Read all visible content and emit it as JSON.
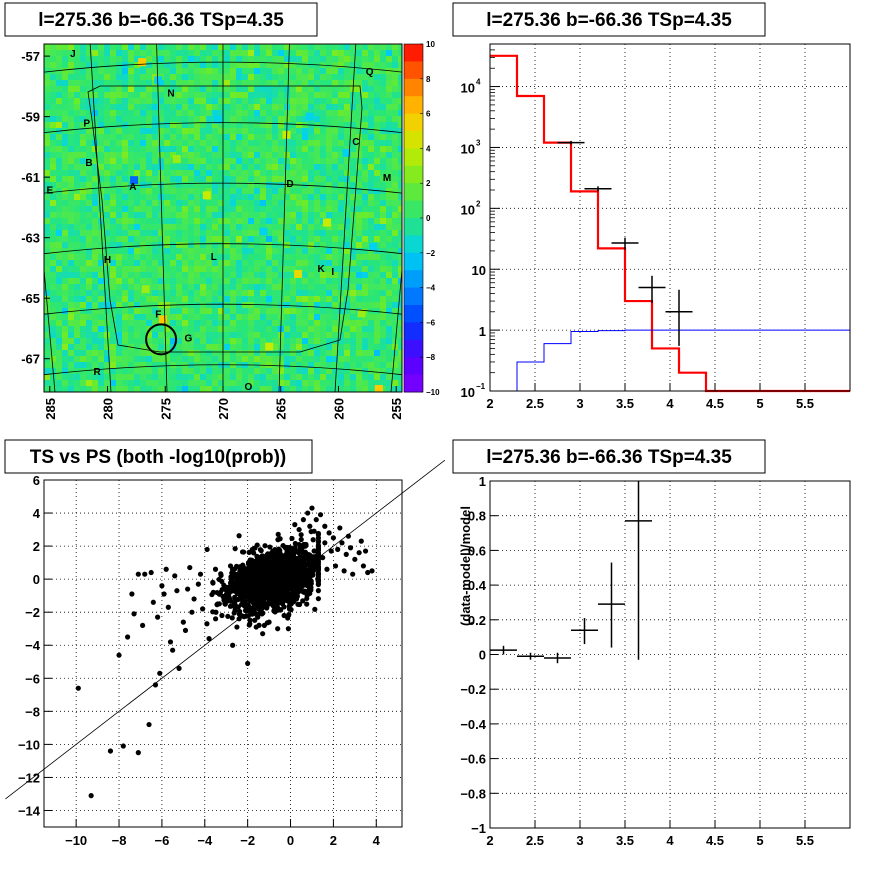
{
  "chart_data": [
    {
      "type": "heatmap",
      "title": "l=275.36 b=-66.36 TSp=4.35",
      "xlim": [
        285.5,
        254.5
      ],
      "ylim": [
        -68.1,
        -56.6
      ],
      "xticks": [
        285,
        280,
        275,
        270,
        265,
        260,
        255
      ],
      "yticks": [
        -57,
        -59,
        -61,
        -63,
        -65,
        -67
      ],
      "xtick_labels": [
        "285",
        "280",
        "275",
        "270",
        "265",
        "260",
        "255"
      ],
      "ytick_labels": [
        "-57",
        "-59",
        "-61",
        "-63",
        "-65",
        "-67"
      ],
      "colorbar": {
        "range": [
          -10,
          10
        ],
        "ticks": [
          10,
          8,
          6,
          4,
          2,
          0,
          -2,
          -4,
          -6,
          -8,
          -10
        ],
        "tick_labels": [
          "10",
          "8",
          "6",
          "4",
          "2",
          "0",
          "−2",
          "−4",
          "−6",
          "−8",
          "−10"
        ]
      },
      "background_value": 0.3,
      "sources": [
        {
          "label": "J",
          "l": 283.0,
          "b": -56.9
        },
        {
          "label": "N",
          "l": 274.5,
          "b": -58.2
        },
        {
          "label": "Q",
          "l": 257.3,
          "b": -57.5
        },
        {
          "label": "P",
          "l": 281.8,
          "b": -59.2
        },
        {
          "label": "C",
          "l": 258.5,
          "b": -59.8
        },
        {
          "label": "B",
          "l": 281.6,
          "b": -60.5
        },
        {
          "label": "M",
          "l": 255.8,
          "b": -61.0
        },
        {
          "label": "E",
          "l": 285.0,
          "b": -61.4
        },
        {
          "label": "A",
          "l": 277.8,
          "b": -61.3
        },
        {
          "label": "D",
          "l": 264.2,
          "b": -61.2
        },
        {
          "label": "H",
          "l": 280.0,
          "b": -63.7
        },
        {
          "label": "L",
          "l": 270.8,
          "b": -63.6
        },
        {
          "label": "K",
          "l": 261.5,
          "b": -64.0
        },
        {
          "label": "I",
          "l": 260.5,
          "b": -64.1
        },
        {
          "label": "F",
          "l": 275.6,
          "b": -65.5
        },
        {
          "label": "G",
          "l": 273.0,
          "b": -66.3
        },
        {
          "label": "R",
          "l": 280.9,
          "b": -67.4
        },
        {
          "label": "O",
          "l": 267.8,
          "b": -67.9
        }
      ],
      "hot_spots": [
        {
          "l": 277.0,
          "b": -57.2,
          "v": 6
        },
        {
          "l": 264.5,
          "b": -59.6,
          "v": 4
        },
        {
          "l": 275.2,
          "b": -65.7,
          "v": 6
        },
        {
          "l": 271.4,
          "b": -61.6,
          "v": 4
        },
        {
          "l": 261.0,
          "b": -62.5,
          "v": 4
        },
        {
          "l": 263.5,
          "b": -64.2,
          "v": 5
        },
        {
          "l": 276.7,
          "b": -64.7,
          "v": 3
        },
        {
          "l": 258.0,
          "b": -65.5,
          "v": 3
        },
        {
          "l": 256.5,
          "b": -68.0,
          "v": 6
        },
        {
          "l": 274.0,
          "b": -60.4,
          "v": 3
        },
        {
          "l": 266.0,
          "b": -66.6,
          "v": 4
        }
      ],
      "cold_spots": [
        {
          "l": 277.7,
          "b": -61.1,
          "v": -5
        },
        {
          "l": 275.6,
          "b": -57.8,
          "v": -2
        },
        {
          "l": 262.5,
          "b": -59.0,
          "v": -2
        },
        {
          "l": 259.3,
          "b": -60.2,
          "v": -2
        },
        {
          "l": 257.0,
          "b": -63.3,
          "v": -2
        },
        {
          "l": 270.5,
          "b": -59.1,
          "v": -2
        },
        {
          "l": 266.5,
          "b": -62.8,
          "v": -2
        }
      ],
      "marked_position": {
        "l": 275.36,
        "b": -66.36,
        "radius_deg": 0.7
      }
    },
    {
      "type": "line",
      "title": "l=275.36 b=-66.36 TSp=4.35",
      "xlim": [
        2,
        6
      ],
      "ylim": [
        0.1,
        50000
      ],
      "log_y": true,
      "grid": true,
      "xticks": [
        2,
        2.5,
        3,
        3.5,
        4,
        4.5,
        5,
        5.5
      ],
      "xtick_labels": [
        "2",
        "2.5",
        "3",
        "3.5",
        "4",
        "4.5",
        "5",
        "5.5"
      ],
      "yticks": [
        0.1,
        1,
        10,
        100,
        1000,
        10000
      ],
      "ytick_labels": [
        {
          "base": "10",
          "exp": "−1"
        },
        {
          "base": "1",
          "exp": ""
        },
        {
          "base": "10",
          "exp": ""
        },
        {
          "base": "10",
          "exp": "2"
        },
        {
          "base": "10",
          "exp": "3"
        },
        {
          "base": "10",
          "exp": "4"
        }
      ],
      "bin_edges": [
        2.0,
        2.3,
        2.6,
        2.9,
        3.2,
        3.5,
        3.8,
        4.1,
        4.4,
        6.0
      ],
      "series": [
        {
          "color": "#ff0000",
          "values": [
            32000,
            7000,
            1200,
            190,
            22,
            3,
            0.5,
            0.2,
            0.1
          ]
        },
        {
          "color": "#0000ff",
          "values": [
            0.08,
            0.3,
            0.6,
            0.95,
            0.98,
            1.0,
            1.0,
            1.0,
            1.0
          ]
        }
      ],
      "data_points": [
        {
          "x": 2.9,
          "y": 1200,
          "xerr": 0.15,
          "ylo": 1120,
          "yhi": 1280
        },
        {
          "x": 3.2,
          "y": 210,
          "xerr": 0.15,
          "ylo": 190,
          "yhi": 230
        },
        {
          "x": 3.5,
          "y": 27,
          "xerr": 0.15,
          "ylo": 21,
          "yhi": 33
        },
        {
          "x": 3.8,
          "y": 5,
          "xerr": 0.15,
          "ylo": 2.8,
          "yhi": 7.8
        },
        {
          "x": 4.1,
          "y": 2,
          "xerr": 0.15,
          "ylo": 0.55,
          "yhi": 4.6
        }
      ]
    },
    {
      "type": "scatter",
      "title": "TS vs PS (both -log10(prob))",
      "xlim": [
        -11.5,
        5.2
      ],
      "ylim": [
        -15,
        6
      ],
      "grid": true,
      "xticks": [
        -10,
        -8,
        -6,
        -4,
        -2,
        0,
        2,
        4
      ],
      "xtick_labels": [
        "−10",
        "−8",
        "−6",
        "−4",
        "−2",
        "0",
        "2",
        "4"
      ],
      "yticks": [
        6,
        4,
        2,
        0,
        -2,
        -4,
        -6,
        -8,
        -10,
        -12,
        -14
      ],
      "ytick_labels": [
        "6",
        "4",
        "2",
        "0",
        "−2",
        "−4",
        "−6",
        "−8",
        "−10",
        "−12",
        "−14"
      ],
      "diagonal": {
        "from": [
          -13.3,
          -13.3
        ],
        "to": [
          7.2,
          7.2
        ]
      },
      "cluster": {
        "cx": -0.8,
        "cy": 0.0,
        "sx": 1.0,
        "sy": 0.85,
        "n": 1600
      },
      "points": [
        [
          -9.9,
          -6.6
        ],
        [
          -9.3,
          -13.1
        ],
        [
          -8.4,
          -10.4
        ],
        [
          -7.8,
          -10.1
        ],
        [
          -7.1,
          -10.5
        ],
        [
          -6.6,
          -8.8
        ],
        [
          -8.0,
          -4.6
        ],
        [
          -7.6,
          -3.5
        ],
        [
          -7.3,
          -2.1
        ],
        [
          -7.1,
          0.3
        ],
        [
          -6.8,
          0.3
        ],
        [
          -6.4,
          -1.4
        ],
        [
          -6.2,
          -2.3
        ],
        [
          -6.0,
          -0.4
        ],
        [
          -5.9,
          -0.9
        ],
        [
          -5.7,
          -1.7
        ],
        [
          -5.5,
          -4.3
        ],
        [
          -5.3,
          -0.7
        ],
        [
          -5.2,
          -5.4
        ],
        [
          -5.0,
          -2.6
        ],
        [
          -4.8,
          -0.6
        ],
        [
          -4.6,
          -2.0
        ],
        [
          -4.5,
          -1.2
        ],
        [
          -4.3,
          -0.3
        ],
        [
          -4.1,
          -1.8
        ],
        [
          -3.9,
          -2.7
        ],
        [
          -3.8,
          -3.6
        ],
        [
          -3.6,
          -0.8
        ],
        [
          -3.4,
          -1.5
        ],
        [
          -3.2,
          -2.2
        ],
        [
          -3.0,
          -0.5
        ],
        [
          -2.9,
          -1.0
        ],
        [
          -2.7,
          -4.0
        ],
        [
          -2.6,
          -1.4
        ],
        [
          -2.4,
          -2.4
        ],
        [
          -2.2,
          -0.7
        ],
        [
          -2.1,
          -1.9
        ],
        [
          -2.0,
          -5.1
        ],
        [
          -6.3,
          -6.4
        ],
        [
          -6.1,
          -5.7
        ],
        [
          -5.6,
          -3.8
        ],
        [
          -4.9,
          -3.1
        ],
        [
          -6.9,
          -2.8
        ],
        [
          -7.4,
          -0.9
        ],
        [
          -6.5,
          0.4
        ],
        [
          -5.8,
          0.6
        ],
        [
          -5.4,
          0.2
        ],
        [
          -4.7,
          0.7
        ],
        [
          -4.2,
          0.3
        ],
        [
          -3.5,
          0.6
        ],
        [
          -2.8,
          0.8
        ],
        [
          -2.3,
          0.5
        ],
        [
          -1.6,
          -2.9
        ],
        [
          -1.3,
          -3.3
        ],
        [
          -1.0,
          -2.6
        ],
        [
          -0.6,
          -3.0
        ],
        [
          -0.3,
          -2.2
        ],
        [
          -0.1,
          -3.0
        ],
        [
          -1.9,
          -2.7
        ],
        [
          -2.5,
          -2.9
        ],
        [
          0.2,
          3.3
        ],
        [
          0.4,
          3.0
        ],
        [
          0.6,
          3.6
        ],
        [
          0.8,
          4.0
        ],
        [
          1.0,
          4.3
        ],
        [
          1.2,
          3.6
        ],
        [
          1.4,
          3.9
        ],
        [
          1.6,
          3.2
        ],
        [
          1.8,
          2.8
        ],
        [
          2.0,
          2.5
        ],
        [
          2.2,
          1.8
        ],
        [
          2.4,
          2.2
        ],
        [
          2.6,
          1.5
        ],
        [
          2.8,
          1.9
        ],
        [
          3.0,
          1.2
        ],
        [
          3.2,
          1.6
        ],
        [
          3.4,
          0.8
        ],
        [
          3.6,
          0.4
        ],
        [
          3.8,
          0.5
        ],
        [
          2.9,
          0.3
        ],
        [
          2.5,
          0.5
        ],
        [
          2.1,
          0.8
        ],
        [
          1.9,
          1.7
        ],
        [
          1.6,
          2.2
        ],
        [
          1.3,
          2.7
        ],
        [
          2.3,
          3.1
        ],
        [
          0.9,
          3.2
        ],
        [
          1.1,
          2.9
        ],
        [
          0.5,
          2.4
        ],
        [
          3.3,
          2.3
        ],
        [
          2.7,
          2.6
        ],
        [
          3.5,
          1.7
        ],
        [
          1.7,
          0.6
        ],
        [
          1.5,
          1.3
        ],
        [
          0.7,
          2.0
        ]
      ]
    },
    {
      "type": "scatter",
      "title": "l=275.36 b=-66.36 TSp=4.35",
      "ylabel": "(data-model)/model",
      "xlim": [
        2,
        6
      ],
      "ylim": [
        -1,
        1
      ],
      "grid": true,
      "xticks": [
        2,
        2.5,
        3,
        3.5,
        4,
        4.5,
        5,
        5.5
      ],
      "xtick_labels": [
        "2",
        "2.5",
        "3",
        "3.5",
        "4",
        "4.5",
        "5",
        "5.5"
      ],
      "yticks": [
        1,
        0.8,
        0.6,
        0.4,
        0.2,
        0,
        -0.2,
        -0.4,
        -0.6,
        -0.8,
        -1
      ],
      "ytick_labels": [
        "1",
        "0.8",
        "0.6",
        "0.4",
        "0.2",
        "0",
        "−0.2",
        "−0.4",
        "−0.6",
        "−0.8",
        "−1"
      ],
      "data_points": [
        {
          "x": 2.15,
          "y": 0.025,
          "xerr": 0.15,
          "ylo": 0.0,
          "yhi": 0.05
        },
        {
          "x": 2.45,
          "y": -0.01,
          "xerr": 0.15,
          "ylo": -0.03,
          "yhi": 0.01
        },
        {
          "x": 2.75,
          "y": -0.02,
          "xerr": 0.15,
          "ylo": -0.05,
          "yhi": 0.01
        },
        {
          "x": 3.05,
          "y": 0.14,
          "xerr": 0.15,
          "ylo": 0.06,
          "yhi": 0.21
        },
        {
          "x": 3.35,
          "y": 0.29,
          "xerr": 0.15,
          "ylo": 0.04,
          "yhi": 0.53
        },
        {
          "x": 3.65,
          "y": 0.77,
          "xerr": 0.15,
          "ylo": -0.03,
          "yhi": 1.0
        }
      ]
    }
  ]
}
